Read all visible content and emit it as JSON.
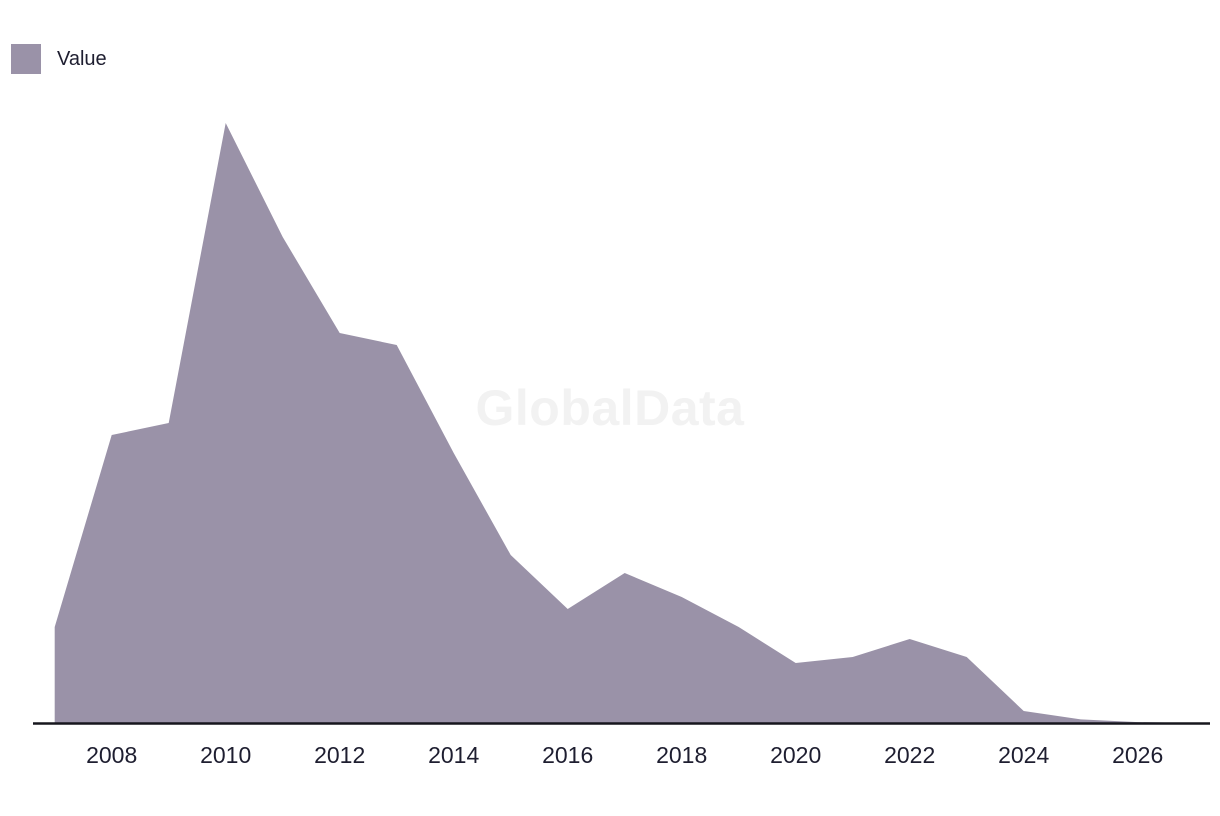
{
  "legend": {
    "label": "Value"
  },
  "watermark": {
    "text": "GlobalData"
  },
  "colors": {
    "area_fill": "#9a92a8",
    "axis_line": "#16161d",
    "tick_text": "#1e1e30",
    "watermark_text": "#f2f2f2"
  },
  "chart_data": {
    "type": "area",
    "title": "",
    "xlabel": "",
    "ylabel": "",
    "x_range": [
      2007,
      2027
    ],
    "x_tick_labels": [
      "2008",
      "2010",
      "2012",
      "2014",
      "2016",
      "2018",
      "2020",
      "2022",
      "2024",
      "2026"
    ],
    "y_axis_visible": false,
    "y_units_note": "no y-axis shown in chart; values are relative units with 2010 peak normalized to 100",
    "ylim": [
      0,
      100
    ],
    "grid": false,
    "legend_position": "top-left",
    "series": [
      {
        "name": "Value",
        "x": [
          2007,
          2008,
          2009,
          2010,
          2011,
          2012,
          2013,
          2014,
          2015,
          2016,
          2017,
          2018,
          2019,
          2020,
          2021,
          2022,
          2023,
          2024,
          2025,
          2026,
          2027
        ],
        "values": [
          16,
          48,
          50,
          100,
          81,
          65,
          63,
          45,
          28,
          19,
          25,
          21,
          16,
          10,
          11,
          14,
          11,
          2,
          0.6,
          0.15,
          0
        ]
      }
    ]
  }
}
